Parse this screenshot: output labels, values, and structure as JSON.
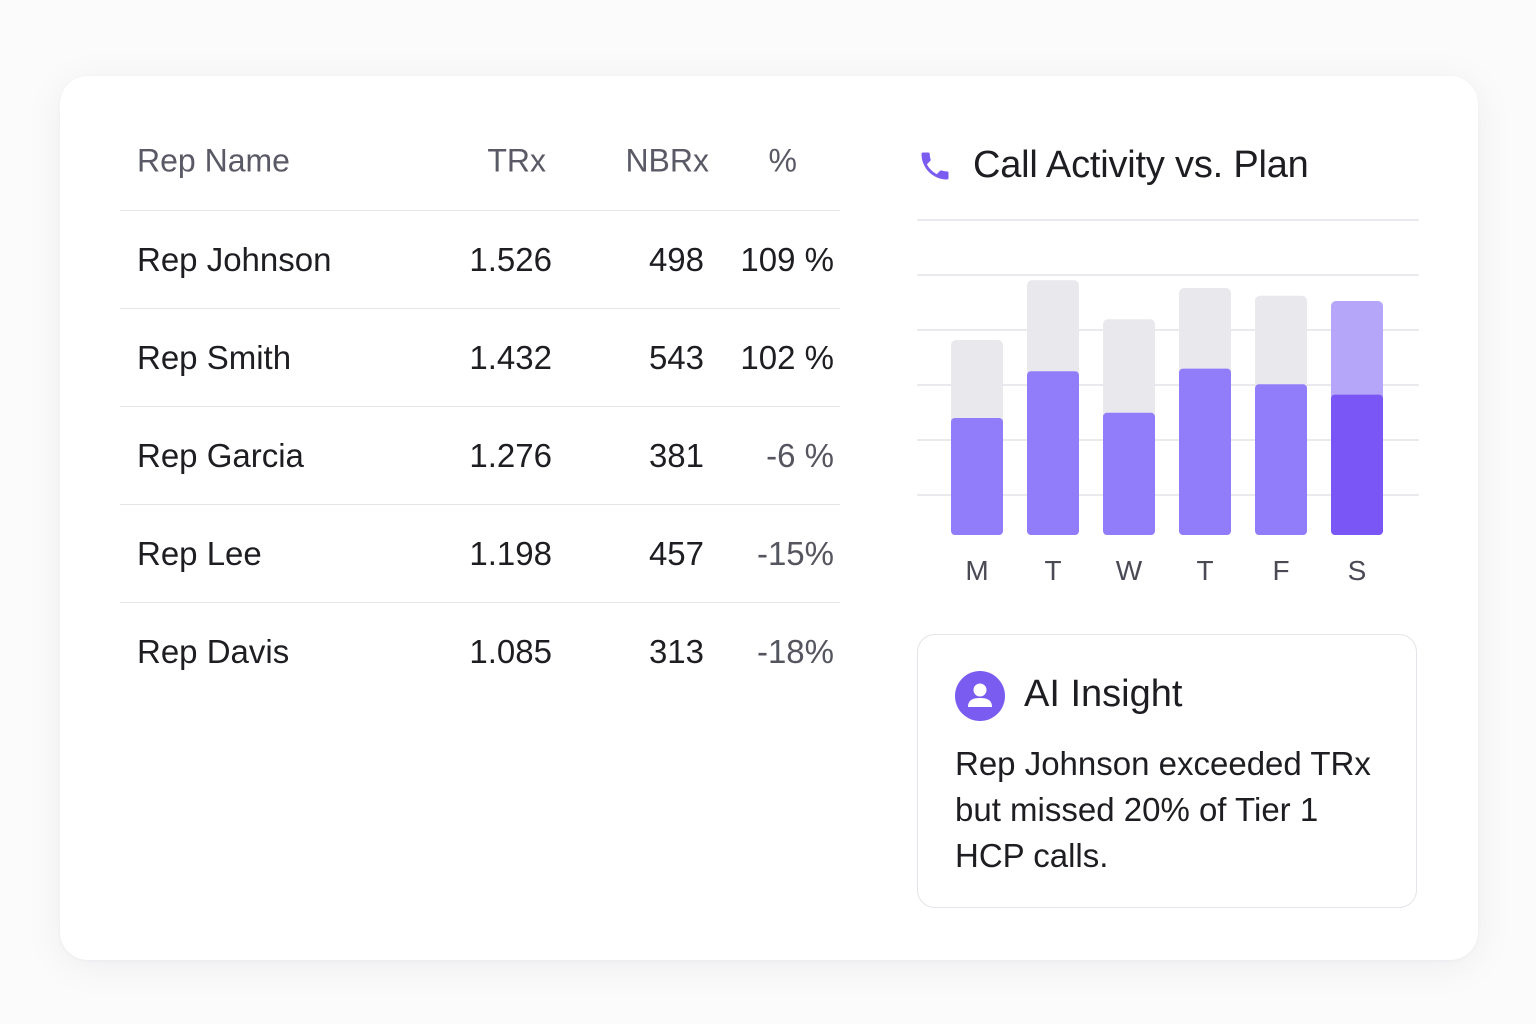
{
  "table": {
    "headers": {
      "name": "Rep Name",
      "trx": "TRx",
      "nbrx": "NBRx",
      "pct": "%"
    },
    "rows": [
      {
        "name": "Rep Johnson",
        "trx": "1.526",
        "nbrx": "498",
        "pct": "109 %"
      },
      {
        "name": "Rep Smith",
        "trx": "1.432",
        "nbrx": "543",
        "pct": "102 %"
      },
      {
        "name": "Rep Garcia",
        "trx": "1.276",
        "nbrx": "381",
        "pct": "-6 %"
      },
      {
        "name": "Rep Lee",
        "trx": "1.198",
        "nbrx": "457",
        "pct": "-15%"
      },
      {
        "name": "Rep Davis",
        "trx": "1.085",
        "nbrx": "313",
        "pct": "-18%"
      }
    ]
  },
  "chart": {
    "title": "Call Activity vs. Plan",
    "icon": "phone-icon"
  },
  "chart_data": {
    "type": "bar",
    "title": "Call Activity vs. Plan",
    "categories": [
      "M",
      "T",
      "W",
      "T",
      "F",
      "S"
    ],
    "series": [
      {
        "values": [
          0.45,
          0.63,
          0.47,
          0.64,
          0.58,
          0.54
        ]
      },
      {
        "values": [
          0.75,
          0.98,
          0.83,
          0.95,
          0.92,
          0.9
        ]
      }
    ],
    "ylim": [
      0,
      1
    ],
    "grid": true,
    "colors": {
      "actual": "#917cf9",
      "plan": "#e8e8ed",
      "highlight_actual": "#7b56f6",
      "highlight_plan": "#b5a6f9",
      "grid": "#e4e4e8"
    },
    "highlight_index": 5
  },
  "insight": {
    "icon": "user-icon",
    "title": "AI Insight",
    "text": "Rep Johnson exceeded TRx but missed 20% of Tier 1 HCP calls."
  },
  "colors": {
    "accent": "#7b5cf0"
  }
}
